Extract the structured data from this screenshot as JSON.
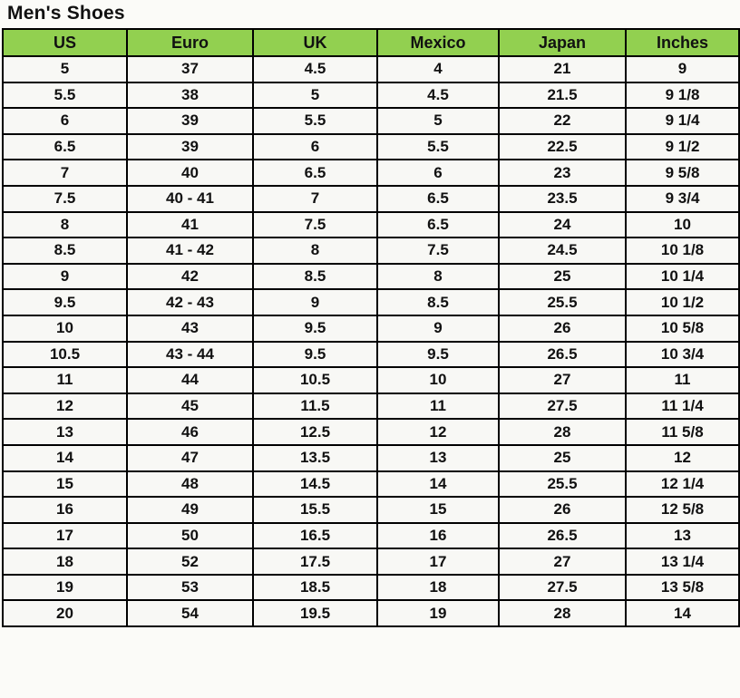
{
  "page_title": "Men's Shoes",
  "colors": {
    "header_bg": "#92d050",
    "border": "#000000",
    "cell_bg": "#f8f8f5",
    "page_bg": "#fbfbf8",
    "text": "#111111"
  },
  "chart_data": {
    "type": "table",
    "title": "Men's Shoes",
    "columns": [
      "US",
      "Euro",
      "UK",
      "Mexico",
      "Japan",
      "Inches"
    ],
    "rows": [
      [
        "5",
        "37",
        "4.5",
        "4",
        "21",
        "9"
      ],
      [
        "5.5",
        "38",
        "5",
        "4.5",
        "21.5",
        "9 1/8"
      ],
      [
        "6",
        "39",
        "5.5",
        "5",
        "22",
        "9 1/4"
      ],
      [
        "6.5",
        "39",
        "6",
        "5.5",
        "22.5",
        "9 1/2"
      ],
      [
        "7",
        "40",
        "6.5",
        "6",
        "23",
        "9 5/8"
      ],
      [
        "7.5",
        "40 - 41",
        "7",
        "6.5",
        "23.5",
        "9 3/4"
      ],
      [
        "8",
        "41",
        "7.5",
        "6.5",
        "24",
        "10"
      ],
      [
        "8.5",
        "41 - 42",
        "8",
        "7.5",
        "24.5",
        "10 1/8"
      ],
      [
        "9",
        "42",
        "8.5",
        "8",
        "25",
        "10 1/4"
      ],
      [
        "9.5",
        "42 - 43",
        "9",
        "8.5",
        "25.5",
        "10 1/2"
      ],
      [
        "10",
        "43",
        "9.5",
        "9",
        "26",
        "10 5/8"
      ],
      [
        "10.5",
        "43 - 44",
        "9.5",
        "9.5",
        "26.5",
        "10 3/4"
      ],
      [
        "11",
        "44",
        "10.5",
        "10",
        "27",
        "11"
      ],
      [
        "12",
        "45",
        "11.5",
        "11",
        "27.5",
        "11 1/4"
      ],
      [
        "13",
        "46",
        "12.5",
        "12",
        "28",
        "11 5/8"
      ],
      [
        "14",
        "47",
        "13.5",
        "13",
        "25",
        "12"
      ],
      [
        "15",
        "48",
        "14.5",
        "14",
        "25.5",
        "12 1/4"
      ],
      [
        "16",
        "49",
        "15.5",
        "15",
        "26",
        "12 5/8"
      ],
      [
        "17",
        "50",
        "16.5",
        "16",
        "26.5",
        "13"
      ],
      [
        "18",
        "52",
        "17.5",
        "17",
        "27",
        "13 1/4"
      ],
      [
        "19",
        "53",
        "18.5",
        "18",
        "27.5",
        "13 5/8"
      ],
      [
        "20",
        "54",
        "19.5",
        "19",
        "28",
        "14"
      ]
    ]
  }
}
